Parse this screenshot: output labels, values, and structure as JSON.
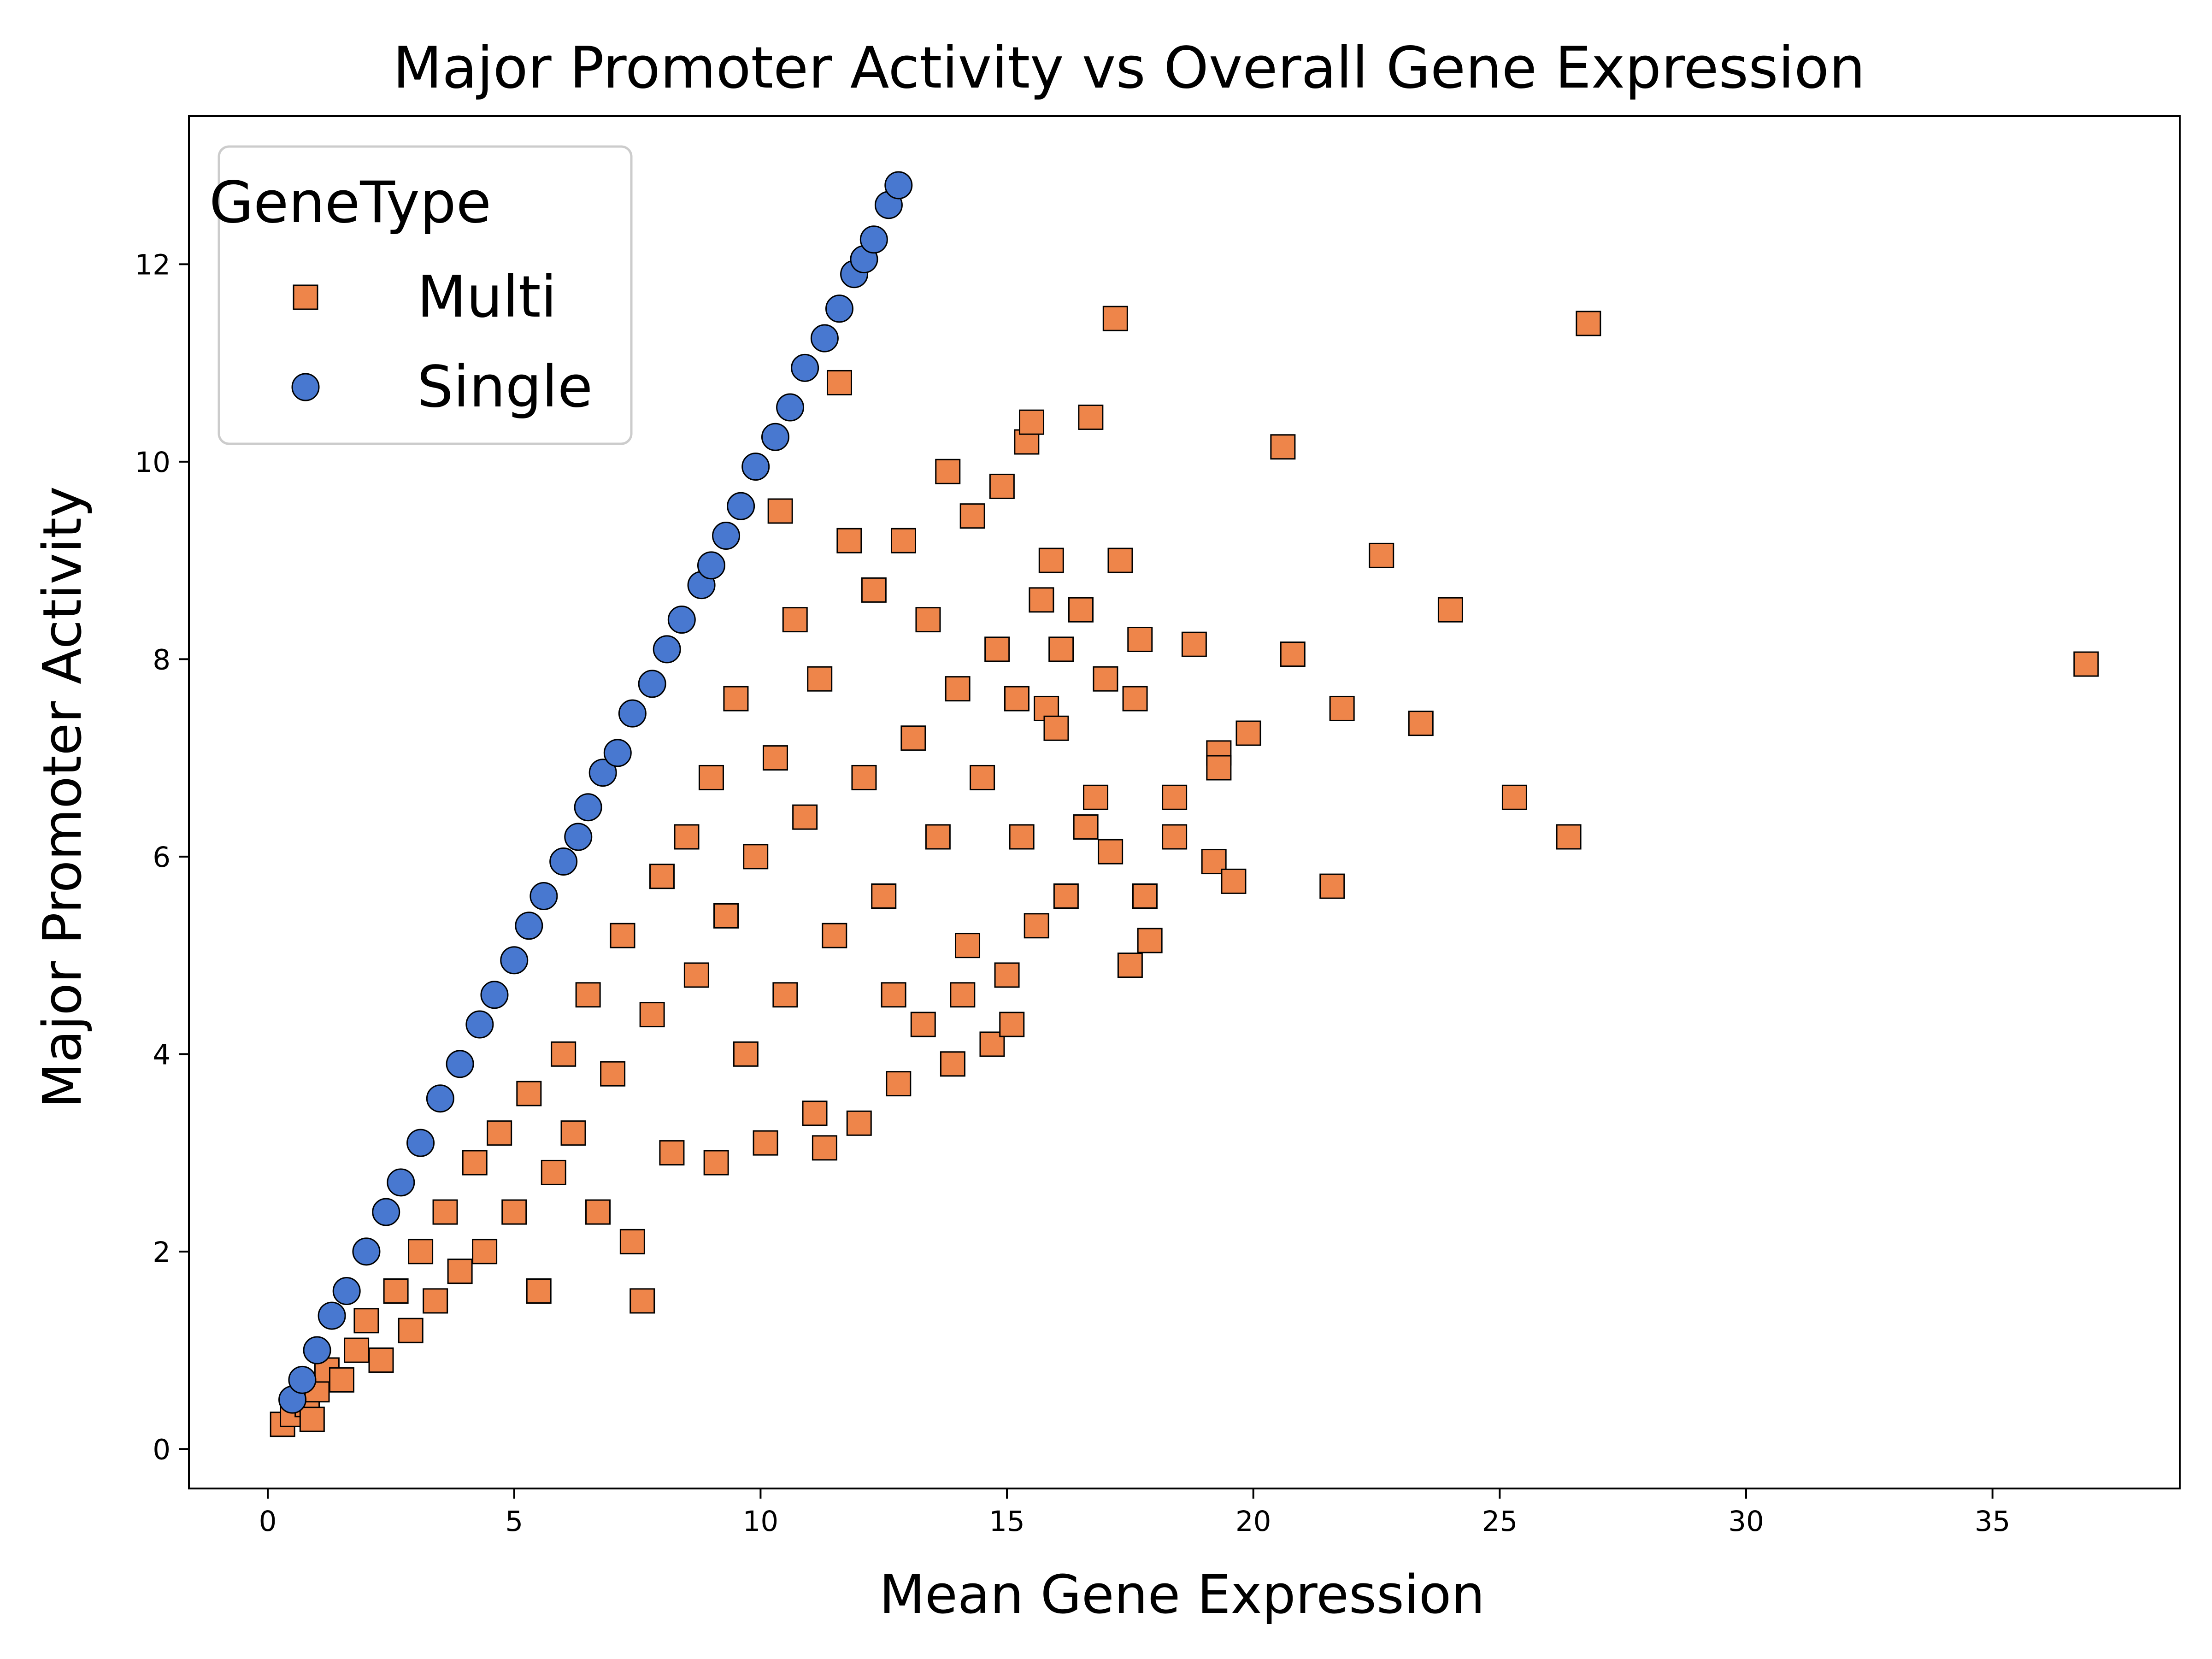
{
  "chart_data": {
    "type": "scatter",
    "title": "Major Promoter Activity vs Overall Gene Expression",
    "xlabel": "Mean Gene Expression",
    "ylabel": "Major Promoter Activity",
    "xlim": [
      -1.6,
      38.8
    ],
    "ylim": [
      -0.4,
      13.5
    ],
    "xticks": [
      0,
      5,
      10,
      15,
      20,
      25,
      30,
      35
    ],
    "yticks": [
      0,
      2,
      4,
      6,
      8,
      10,
      12
    ],
    "grid": false,
    "legend": {
      "title": "GeneType",
      "position": "top-left"
    },
    "series": [
      {
        "name": "Multi",
        "marker": "square",
        "color": "#EE854A",
        "points": [
          [
            0.3,
            0.25
          ],
          [
            0.5,
            0.35
          ],
          [
            0.8,
            0.45
          ],
          [
            1.0,
            0.6
          ],
          [
            1.2,
            0.8
          ],
          [
            0.9,
            0.3
          ],
          [
            1.5,
            0.7
          ],
          [
            1.8,
            1.0
          ],
          [
            2.0,
            1.3
          ],
          [
            2.3,
            0.9
          ],
          [
            2.6,
            1.6
          ],
          [
            2.9,
            1.2
          ],
          [
            3.1,
            2.0
          ],
          [
            3.4,
            1.5
          ],
          [
            3.6,
            2.4
          ],
          [
            3.9,
            1.8
          ],
          [
            4.2,
            2.9
          ],
          [
            4.4,
            2.0
          ],
          [
            4.7,
            3.2
          ],
          [
            5.0,
            2.4
          ],
          [
            5.3,
            3.6
          ],
          [
            5.5,
            1.6
          ],
          [
            5.8,
            2.8
          ],
          [
            6.0,
            4.0
          ],
          [
            6.2,
            3.2
          ],
          [
            6.5,
            4.6
          ],
          [
            6.7,
            2.4
          ],
          [
            7.0,
            3.8
          ],
          [
            7.2,
            5.2
          ],
          [
            7.4,
            2.1
          ],
          [
            7.6,
            1.5
          ],
          [
            7.8,
            4.4
          ],
          [
            8.0,
            5.8
          ],
          [
            8.2,
            3.0
          ],
          [
            8.5,
            6.2
          ],
          [
            8.7,
            4.8
          ],
          [
            9.0,
            6.8
          ],
          [
            9.1,
            2.9
          ],
          [
            9.3,
            5.4
          ],
          [
            9.5,
            7.6
          ],
          [
            9.7,
            4.0
          ],
          [
            9.9,
            6.0
          ],
          [
            10.1,
            3.1
          ],
          [
            10.3,
            7.0
          ],
          [
            10.4,
            9.5
          ],
          [
            10.5,
            4.6
          ],
          [
            10.7,
            8.4
          ],
          [
            10.9,
            6.4
          ],
          [
            11.1,
            3.4
          ],
          [
            11.2,
            7.8
          ],
          [
            11.3,
            3.05
          ],
          [
            11.5,
            5.2
          ],
          [
            11.6,
            10.8
          ],
          [
            11.8,
            9.2
          ],
          [
            12.0,
            3.3
          ],
          [
            12.1,
            6.8
          ],
          [
            12.3,
            8.7
          ],
          [
            12.5,
            5.6
          ],
          [
            12.7,
            4.6
          ],
          [
            12.8,
            3.7
          ],
          [
            12.9,
            9.2
          ],
          [
            13.1,
            7.2
          ],
          [
            13.3,
            4.3
          ],
          [
            13.4,
            8.4
          ],
          [
            13.6,
            6.2
          ],
          [
            13.8,
            9.9
          ],
          [
            13.9,
            3.9
          ],
          [
            14.0,
            7.7
          ],
          [
            14.1,
            4.6
          ],
          [
            14.2,
            5.1
          ],
          [
            14.3,
            9.45
          ],
          [
            14.5,
            6.8
          ],
          [
            14.7,
            4.1
          ],
          [
            14.8,
            8.1
          ],
          [
            14.9,
            9.75
          ],
          [
            15.0,
            4.8
          ],
          [
            15.1,
            4.3
          ],
          [
            15.2,
            7.6
          ],
          [
            15.3,
            6.2
          ],
          [
            15.4,
            10.2
          ],
          [
            15.5,
            10.4
          ],
          [
            15.6,
            5.3
          ],
          [
            15.7,
            8.6
          ],
          [
            15.8,
            7.5
          ],
          [
            15.9,
            9.0
          ],
          [
            16.0,
            7.3
          ],
          [
            16.1,
            8.1
          ],
          [
            16.2,
            5.6
          ],
          [
            16.5,
            8.5
          ],
          [
            16.6,
            6.3
          ],
          [
            16.7,
            10.45
          ],
          [
            16.8,
            6.6
          ],
          [
            17.0,
            7.8
          ],
          [
            17.1,
            6.05
          ],
          [
            17.2,
            11.45
          ],
          [
            17.3,
            9.0
          ],
          [
            17.5,
            4.9
          ],
          [
            17.6,
            7.6
          ],
          [
            17.7,
            8.2
          ],
          [
            17.8,
            5.6
          ],
          [
            17.9,
            5.15
          ],
          [
            18.4,
            6.6
          ],
          [
            18.4,
            6.2
          ],
          [
            18.8,
            8.15
          ],
          [
            19.2,
            5.95
          ],
          [
            19.3,
            7.05
          ],
          [
            19.3,
            6.9
          ],
          [
            19.6,
            5.75
          ],
          [
            19.9,
            7.25
          ],
          [
            20.6,
            10.15
          ],
          [
            20.8,
            8.05
          ],
          [
            21.6,
            5.7
          ],
          [
            21.8,
            7.5
          ],
          [
            22.6,
            9.05
          ],
          [
            23.4,
            7.35
          ],
          [
            24.0,
            8.5
          ],
          [
            25.3,
            6.6
          ],
          [
            26.4,
            6.2
          ],
          [
            26.8,
            11.4
          ],
          [
            36.9,
            7.95
          ]
        ]
      },
      {
        "name": "Single",
        "marker": "circle",
        "color": "#4878D0",
        "points": [
          [
            0.5,
            0.5
          ],
          [
            0.7,
            0.7
          ],
          [
            1.0,
            1.0
          ],
          [
            1.3,
            1.35
          ],
          [
            1.6,
            1.6
          ],
          [
            2.0,
            2.0
          ],
          [
            2.4,
            2.4
          ],
          [
            2.7,
            2.7
          ],
          [
            3.1,
            3.1
          ],
          [
            3.5,
            3.55
          ],
          [
            3.9,
            3.9
          ],
          [
            4.3,
            4.3
          ],
          [
            4.6,
            4.6
          ],
          [
            5.0,
            4.95
          ],
          [
            5.3,
            5.3
          ],
          [
            5.6,
            5.6
          ],
          [
            6.0,
            5.95
          ],
          [
            6.3,
            6.2
          ],
          [
            6.5,
            6.5
          ],
          [
            6.8,
            6.85
          ],
          [
            7.1,
            7.05
          ],
          [
            7.4,
            7.45
          ],
          [
            7.8,
            7.75
          ],
          [
            8.1,
            8.1
          ],
          [
            8.4,
            8.4
          ],
          [
            8.8,
            8.75
          ],
          [
            9.0,
            8.95
          ],
          [
            9.3,
            9.25
          ],
          [
            9.6,
            9.55
          ],
          [
            9.9,
            9.95
          ],
          [
            10.3,
            10.25
          ],
          [
            10.6,
            10.55
          ],
          [
            10.9,
            10.95
          ],
          [
            11.3,
            11.25
          ],
          [
            11.6,
            11.55
          ],
          [
            11.9,
            11.9
          ],
          [
            12.1,
            12.05
          ],
          [
            12.3,
            12.25
          ],
          [
            12.6,
            12.6
          ],
          [
            12.8,
            12.8
          ]
        ]
      }
    ]
  }
}
